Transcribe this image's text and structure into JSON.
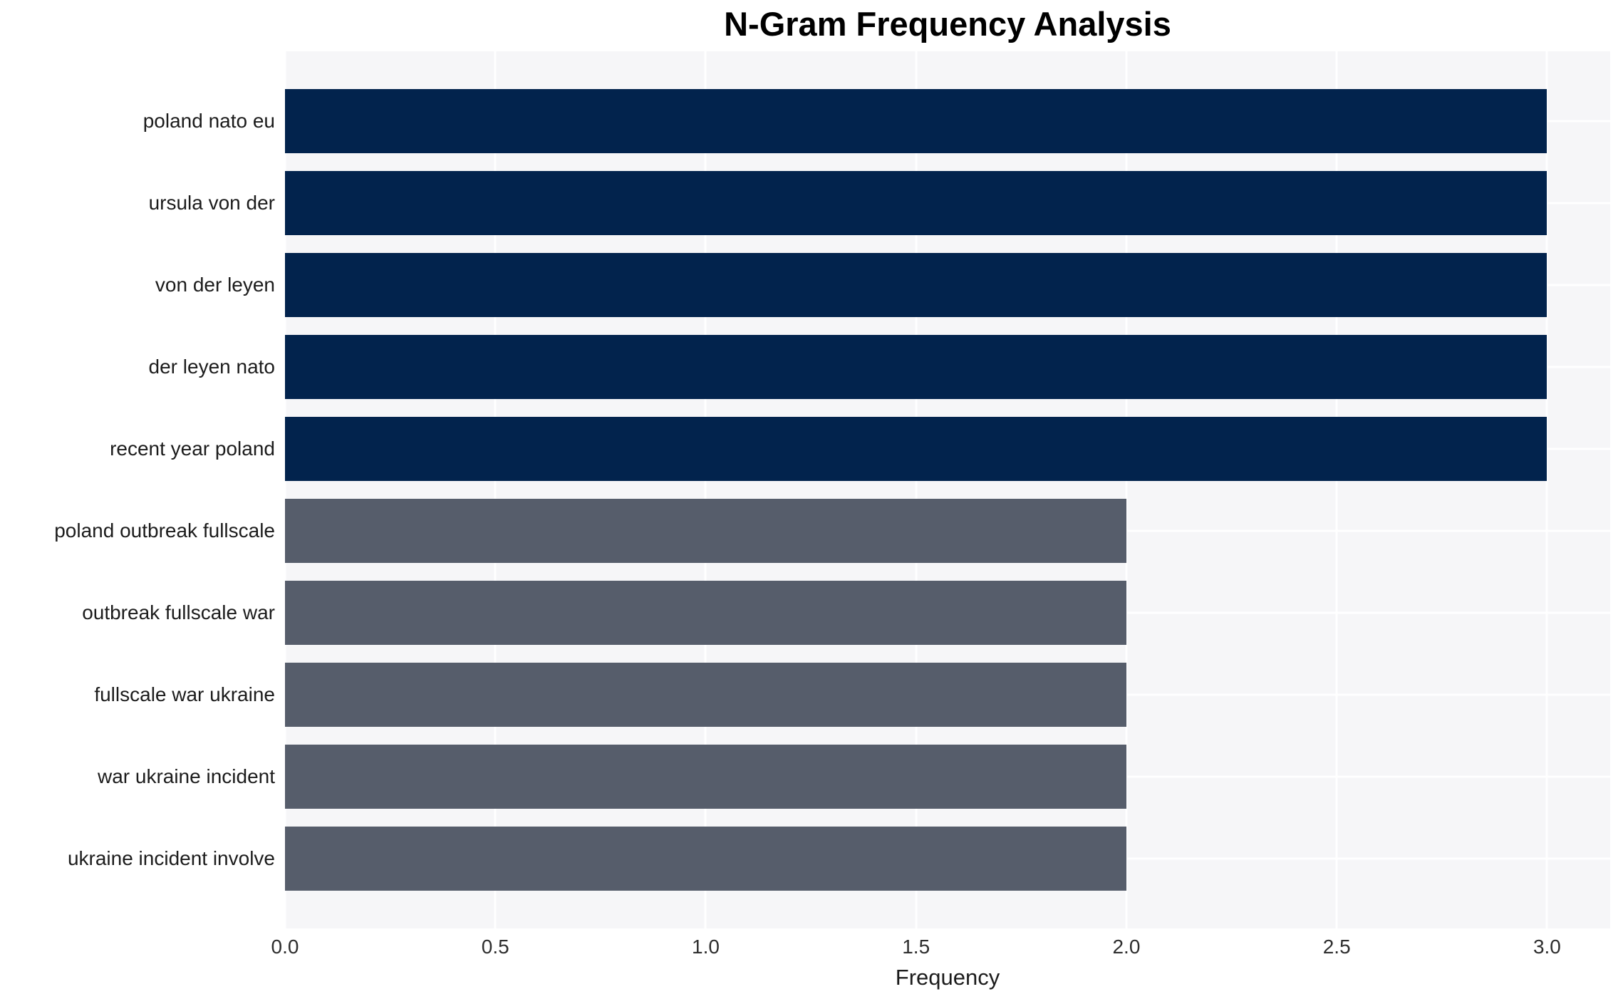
{
  "title": "N-Gram Frequency Analysis",
  "chart_data": {
    "type": "bar",
    "orientation": "horizontal",
    "title": "N-Gram Frequency Analysis",
    "categories": [
      "poland nato eu",
      "ursula von der",
      "von der leyen",
      "der leyen nato",
      "recent year poland",
      "poland outbreak fullscale",
      "outbreak fullscale war",
      "fullscale war ukraine",
      "war ukraine incident",
      "ukraine incident involve"
    ],
    "values": [
      3,
      3,
      3,
      3,
      3,
      2,
      2,
      2,
      2,
      2
    ],
    "bar_colors": [
      "#02234d",
      "#02234d",
      "#02234d",
      "#02234d",
      "#02234d",
      "#565d6b",
      "#565d6b",
      "#565d6b",
      "#565d6b",
      "#565d6b"
    ],
    "xlabel": "Frequency",
    "ylabel": "",
    "xticks": [
      "0.0",
      "0.5",
      "1.0",
      "1.5",
      "2.0",
      "2.5",
      "3.0"
    ],
    "xlim": [
      0,
      3.15
    ],
    "grid": true,
    "legend": false
  },
  "colors": {
    "bar_high": "#02234d",
    "bar_low": "#565d6b",
    "plot_background": "#f6f6f8",
    "gridline": "#ffffff",
    "page_background": "#ffffff",
    "title_text": "#000000",
    "label_text": "#1c1c1c",
    "tick_text": "#2e2e2e"
  }
}
